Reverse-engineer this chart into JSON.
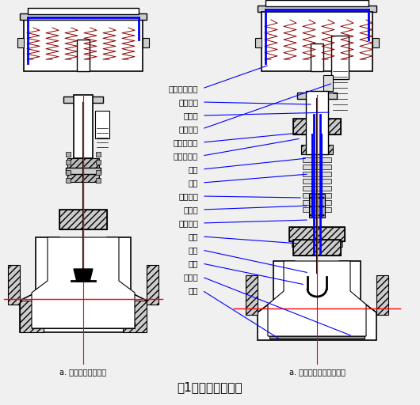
{
  "title": "图1、调节阀结构图",
  "title_fontsize": 11,
  "label_fontsize": 8,
  "bg_color": "#f0f0f0",
  "hatch_color": "#888888",
  "line_color": "#000000",
  "blue_color": "#0000ff",
  "red_color": "#ff0000",
  "fill_color": "#d4d4d4",
  "left_caption": "a. 普通型气动调节阀",
  "right_caption": "a. 波纹管密封气动调节阀",
  "labels": [
    "气动执行机构",
    "六角螺母",
    "拨针点",
    "行程标尺",
    "执行器支架",
    "波纹管上盖",
    "压盖",
    "填料",
    "螺丝螺母",
    "波纹管",
    "四氟套管",
    "上盖",
    "阀芯",
    "阀座",
    "衬里层",
    "阀体"
  ]
}
